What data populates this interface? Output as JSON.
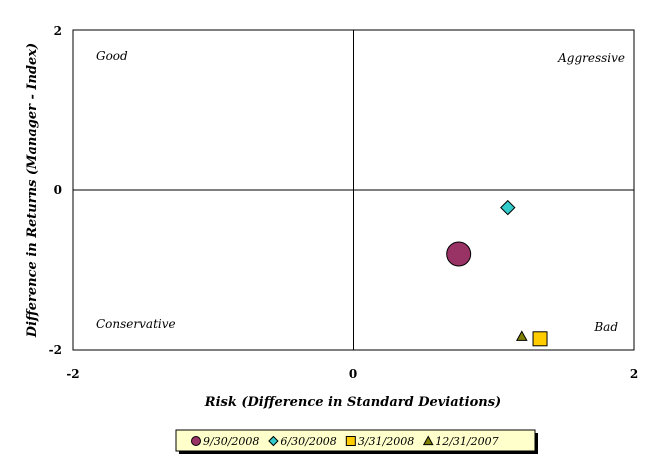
{
  "chart_data": {
    "type": "scatter",
    "title": "",
    "xlabel": "Risk (Difference in Standard Deviations)",
    "ylabel": "Difference in Returns (Manager - Index)",
    "xlim": [
      -2,
      2
    ],
    "ylim": [
      -2,
      2
    ],
    "x_ticks": [
      "-2",
      "0",
      "2"
    ],
    "y_ticks": [
      "2",
      "0",
      "-2"
    ],
    "grid": false,
    "legend_position": "bottom",
    "quadrant_labels": {
      "top_left": "Good",
      "top_right": "Aggressive",
      "bottom_left": "Conservative",
      "bottom_right": "Bad"
    },
    "series": [
      {
        "name": "9/30/2008",
        "marker": "circle",
        "color": "#993366",
        "size": "large",
        "x": 0.75,
        "y": -0.8
      },
      {
        "name": "6/30/2008",
        "marker": "diamond",
        "color": "#33CCCC",
        "size": "medium",
        "x": 1.1,
        "y": -0.22
      },
      {
        "name": "3/31/2008",
        "marker": "square",
        "color": "#FFCC00",
        "size": "medium",
        "x": 1.33,
        "y": -1.86
      },
      {
        "name": "12/31/2007",
        "marker": "triangle",
        "color": "#808000",
        "size": "small",
        "x": 1.2,
        "y": -1.83
      }
    ]
  }
}
